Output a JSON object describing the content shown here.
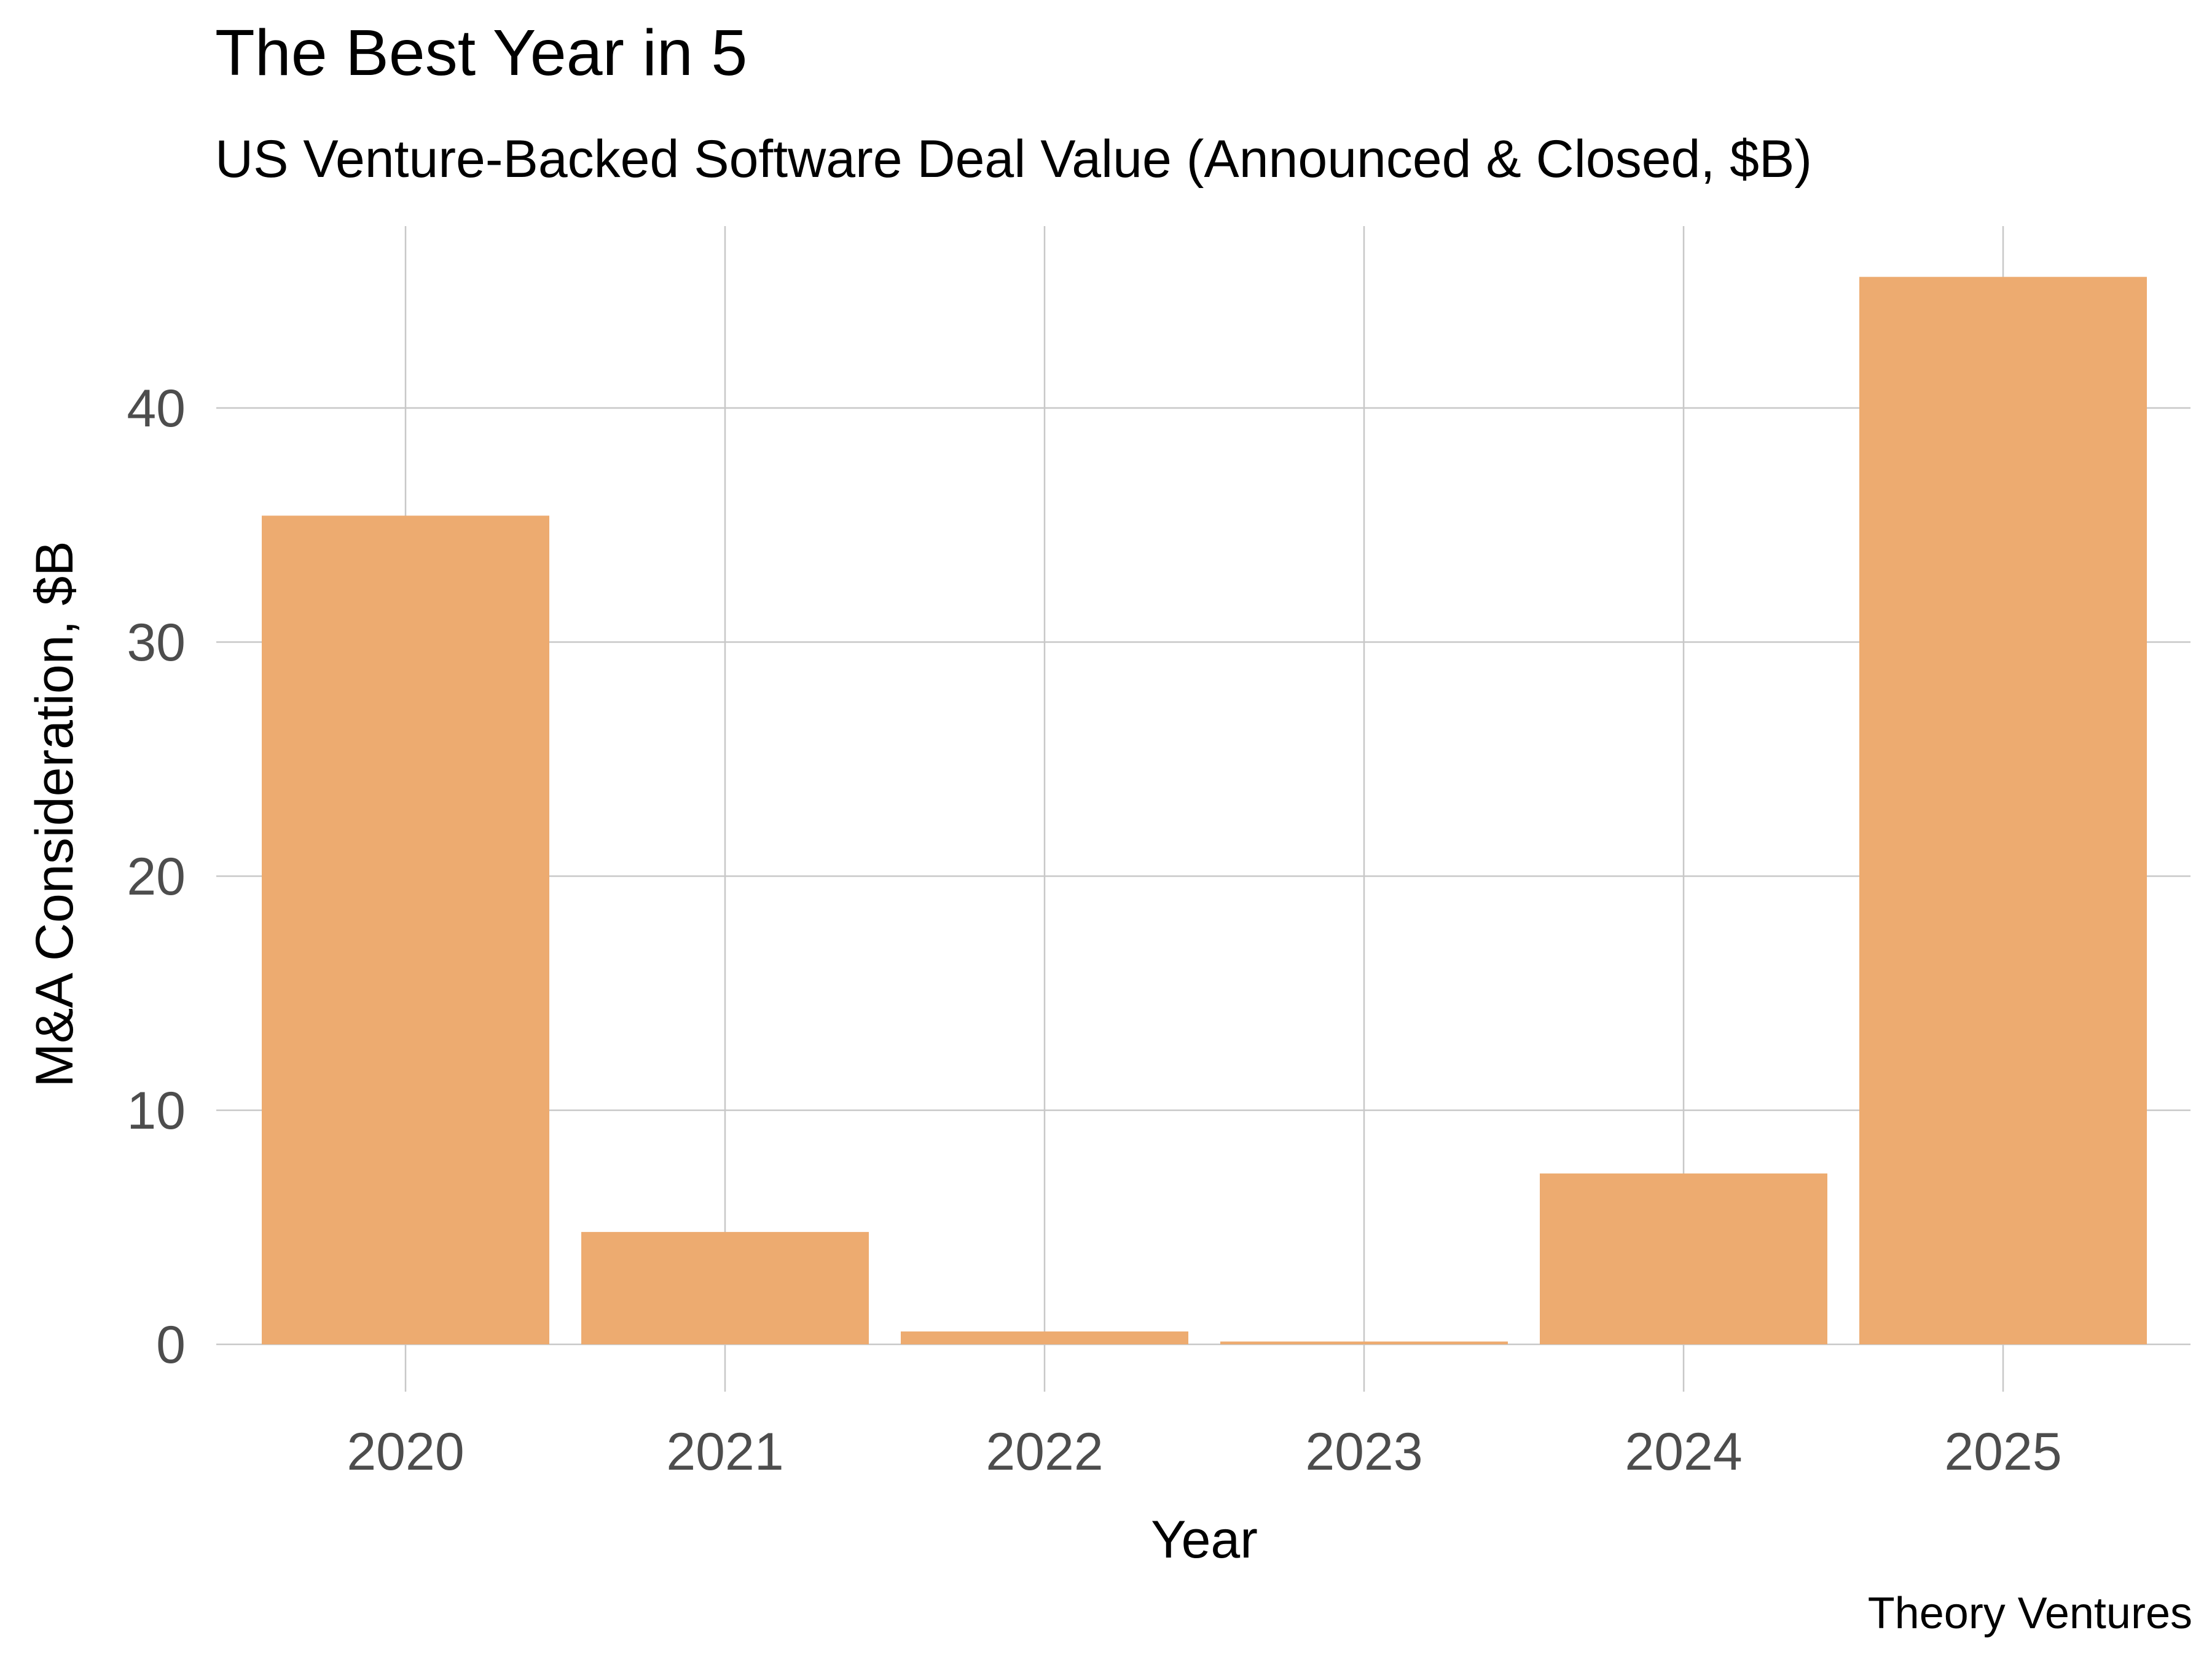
{
  "chart_data": {
    "type": "bar",
    "title": "The Best Year in 5",
    "subtitle": "US Venture-Backed Software Deal Value (Announced & Closed, $B)",
    "xlabel": "Year",
    "ylabel": "M&A Consideration, $B",
    "caption": "Theory Ventures",
    "categories": [
      "2020",
      "2021",
      "2022",
      "2023",
      "2024",
      "2025"
    ],
    "values": [
      35.4,
      4.8,
      0.55,
      0.12,
      7.3,
      45.6
    ],
    "ylim": [
      0,
      47.5
    ],
    "yticks": [
      0,
      10,
      20,
      30,
      40
    ],
    "ytick_labels": [
      "0",
      "10",
      "20",
      "30",
      "40"
    ],
    "grid": true,
    "legend": "none",
    "colors": {
      "bar": "#EDAB70",
      "grid": "#C8C8C8",
      "tick_label": "#4D4D4D",
      "text": "#000000"
    }
  }
}
